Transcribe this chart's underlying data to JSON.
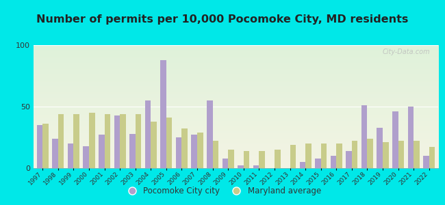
{
  "title": "Number of permits per 10,000 Pocomoke City, MD residents",
  "years": [
    1997,
    1998,
    1999,
    2000,
    2001,
    2002,
    2003,
    2004,
    2005,
    2006,
    2007,
    2008,
    2009,
    2010,
    2011,
    2012,
    2013,
    2014,
    2015,
    2016,
    2017,
    2018,
    2019,
    2020,
    2021,
    2022
  ],
  "city_values": [
    35,
    24,
    20,
    18,
    27,
    43,
    28,
    55,
    88,
    25,
    27,
    55,
    8,
    2,
    2,
    0,
    0,
    5,
    8,
    10,
    14,
    51,
    33,
    46,
    50,
    10
  ],
  "avg_values": [
    36,
    44,
    44,
    45,
    44,
    44,
    44,
    38,
    41,
    32,
    29,
    22,
    15,
    14,
    14,
    15,
    19,
    20,
    20,
    20,
    22,
    24,
    21,
    22,
    22,
    17
  ],
  "city_color": "#b09fcc",
  "avg_color": "#c8cc8a",
  "bg_color_outer": "#00e8e8",
  "ylim": [
    0,
    100
  ],
  "yticks": [
    0,
    50,
    100
  ],
  "title_fontsize": 11.5,
  "bar_width": 0.38,
  "legend_city": "Pocomoke City city",
  "legend_avg": "Maryland average"
}
